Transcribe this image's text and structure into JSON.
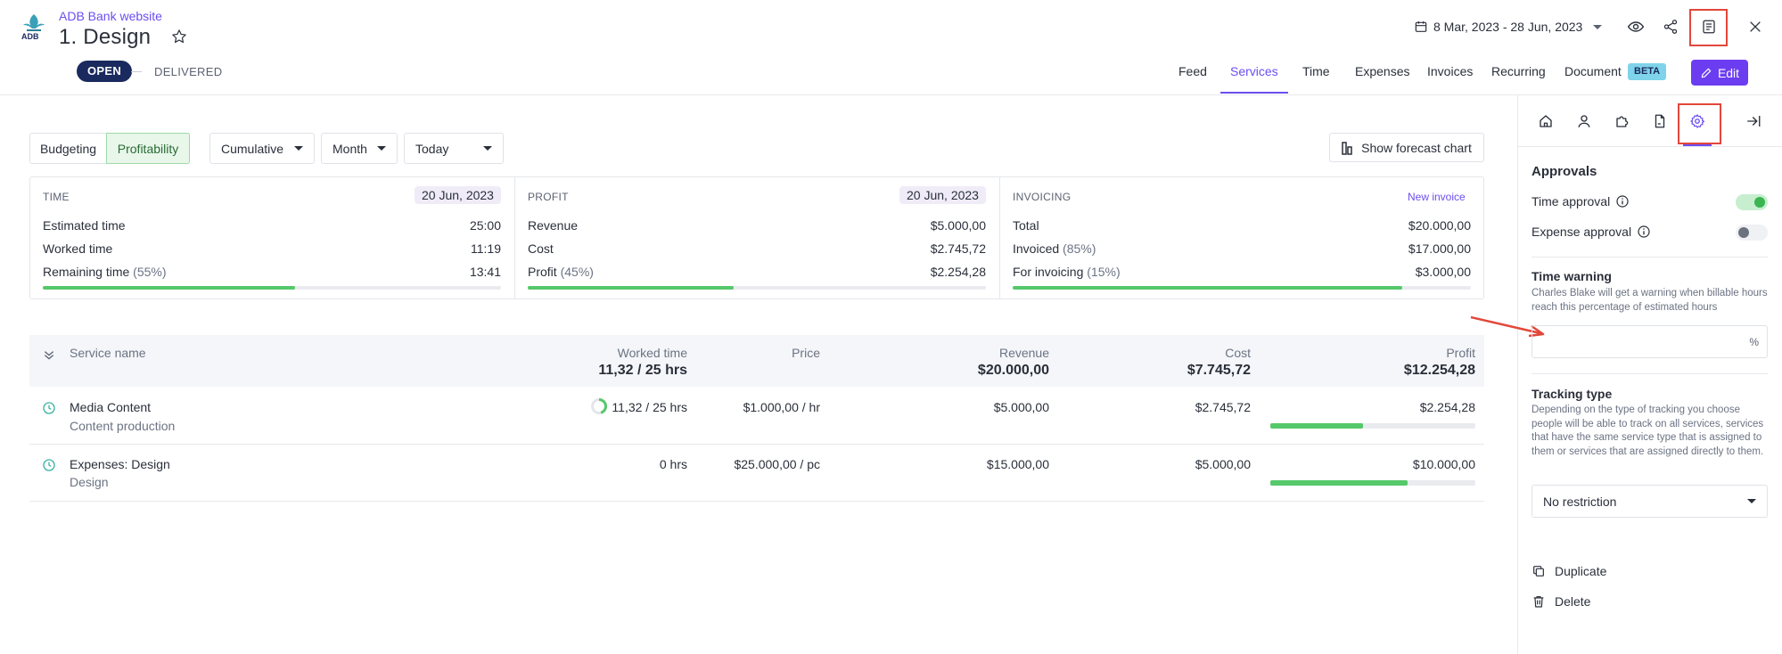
{
  "header": {
    "client_name": "ADB Bank website",
    "project_title": "1. Design",
    "logo_text": "ADB",
    "date_range": "8 Mar, 2023 - 28 Jun, 2023",
    "status_open": "OPEN",
    "status_delivered": "DELIVERED",
    "icons": [
      "calendar-icon",
      "eye-icon",
      "share-icon",
      "document-panel-icon",
      "close-icon",
      "star-icon"
    ]
  },
  "nav": {
    "tabs": [
      "Feed",
      "Services",
      "Time",
      "Expenses",
      "Invoices",
      "Recurring",
      "Document"
    ],
    "active_tab": "Services",
    "beta_badge": "BETA",
    "edit_label": "Edit"
  },
  "toolbar": {
    "budgeting": "Budgeting",
    "profitability": "Profitability",
    "active_mode": "Profitability",
    "cumulative": "Cumulative",
    "month": "Month",
    "today": "Today",
    "forecast": "Show forecast chart"
  },
  "cards": {
    "time": {
      "title": "TIME",
      "date": "20 Jun, 2023",
      "rows": [
        {
          "label": "Estimated time",
          "extra": "",
          "value": "25:00"
        },
        {
          "label": "Worked time",
          "extra": "",
          "value": "11:19"
        },
        {
          "label": "Remaining time",
          "extra": "(55%)",
          "value": "13:41"
        }
      ],
      "progress": 0.55
    },
    "profit": {
      "title": "PROFIT",
      "date": "20 Jun, 2023",
      "rows": [
        {
          "label": "Revenue",
          "extra": "",
          "value": "$5.000,00"
        },
        {
          "label": "Cost",
          "extra": "",
          "value": "$2.745,72"
        },
        {
          "label": "Profit",
          "extra": "(45%)",
          "value": "$2.254,28"
        }
      ],
      "progress": 0.45
    },
    "invoicing": {
      "title": "INVOICING",
      "link": "New invoice",
      "rows": [
        {
          "label": "Total",
          "extra": "",
          "value": "$20.000,00"
        },
        {
          "label": "Invoiced",
          "extra": "(85%)",
          "value": "$17.000,00"
        },
        {
          "label": "For invoicing",
          "extra": "(15%)",
          "value": "$3.000,00"
        }
      ],
      "progress": 0.85
    }
  },
  "table": {
    "headers": {
      "service_name": "Service name",
      "worked_time": "Worked time",
      "worked_time_total": "11,32 / 25 hrs",
      "price": "Price",
      "revenue": "Revenue",
      "revenue_total": "$20.000,00",
      "cost": "Cost",
      "cost_total": "$7.745,72",
      "profit": "Profit",
      "profit_total": "$12.254,28"
    },
    "rows": [
      {
        "name": "Media Content",
        "type": "Content production",
        "worked": "11,32 / 25 hrs",
        "price": "$1.000,00 / hr",
        "revenue": "$5.000,00",
        "cost": "$2.745,72",
        "profit": "$2.254,28",
        "profit_ratio": 0.45,
        "worked_ratio": 0.45
      },
      {
        "name": "Expenses: Design",
        "type": "Design",
        "worked": "0 hrs",
        "price": "$25.000,00 / pc",
        "revenue": "$15.000,00",
        "cost": "$5.000,00",
        "profit": "$10.000,00",
        "profit_ratio": 0.67
      }
    ]
  },
  "panel": {
    "approvals_title": "Approvals",
    "time_approval": "Time approval",
    "time_approval_on": true,
    "expense_approval": "Expense approval",
    "expense_approval_on": false,
    "time_warning_title": "Time warning",
    "time_warning_desc": "Charles Blake will get a warning when billable hours reach this percentage of estimated hours",
    "time_warning_value": "",
    "percent_sign": "%",
    "tracking_title": "Tracking type",
    "tracking_desc": "Depending on the type of tracking you choose people will be able to track on all services, services that have the same service type that is assigned to them or services that are assigned directly to them.",
    "tracking_value": "No restriction",
    "duplicate": "Duplicate",
    "delete": "Delete"
  },
  "colors": {
    "accent": "#6c4ef0",
    "progress_green": "#55c86a",
    "highlight_red": "#e2473a",
    "status_dark": "#1a2a5e"
  }
}
